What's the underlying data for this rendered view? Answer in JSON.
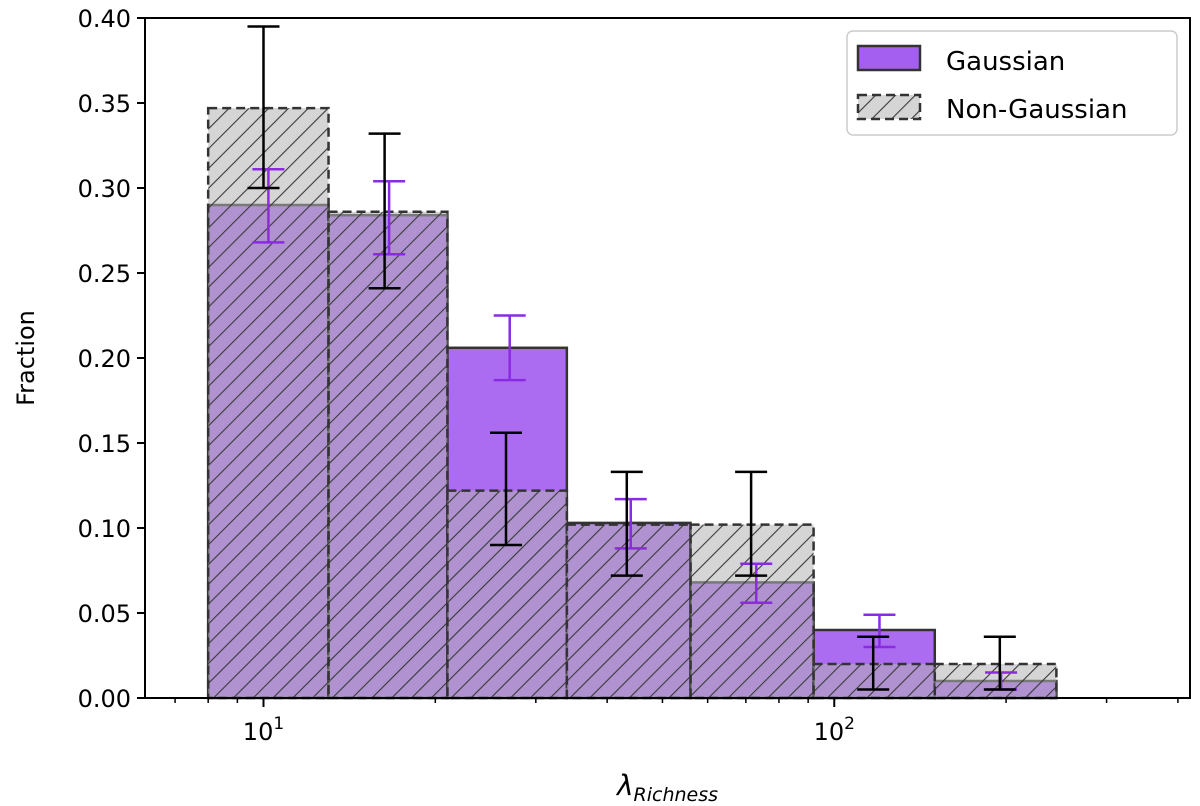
{
  "chart_data": {
    "type": "bar",
    "x_scale": "log",
    "xlabel_symbol": "λ",
    "xlabel_subscript": "Richness",
    "ylabel": "Fraction",
    "xlim": [
      6.2,
      420
    ],
    "ylim": [
      0,
      0.4
    ],
    "y_ticks": [
      "0.00",
      "0.05",
      "0.10",
      "0.15",
      "0.20",
      "0.25",
      "0.30",
      "0.35",
      "0.40"
    ],
    "x_major_ticks": [
      {
        "value": 10,
        "base": "10",
        "exp": "1"
      },
      {
        "value": 100,
        "base": "10",
        "exp": "2"
      }
    ],
    "bin_edges": [
      8,
      13,
      21,
      34,
      56,
      92,
      150,
      245
    ],
    "series": [
      {
        "name": "Gaussian",
        "color": "#a55ff0",
        "values": [
          0.29,
          0.284,
          0.206,
          0.103,
          0.068,
          0.04,
          0.01
        ],
        "error_centers": [
          10.2,
          16.6,
          27.0,
          44.0,
          73.0,
          120.0,
          196.0
        ],
        "errors_low": [
          0.268,
          0.261,
          0.187,
          0.088,
          0.056,
          0.03,
          0.005
        ],
        "errors_high": [
          0.311,
          0.304,
          0.225,
          0.117,
          0.079,
          0.049,
          0.015
        ],
        "error_color": "#8a2be2"
      },
      {
        "name": "Non-Gaussian",
        "color": "#b3b3b3",
        "hatch": "diagonal",
        "values": [
          0.347,
          0.286,
          0.122,
          0.102,
          0.102,
          0.02,
          0.02
        ],
        "error_centers": [
          10.0,
          16.3,
          26.6,
          43.3,
          71.5,
          117.0,
          195.0
        ],
        "errors_low": [
          0.3,
          0.241,
          0.09,
          0.072,
          0.072,
          0.005,
          0.005
        ],
        "errors_high": [
          0.395,
          0.332,
          0.156,
          0.133,
          0.133,
          0.036,
          0.036
        ],
        "error_color": "#000000"
      }
    ],
    "legend_position": "top-right"
  }
}
